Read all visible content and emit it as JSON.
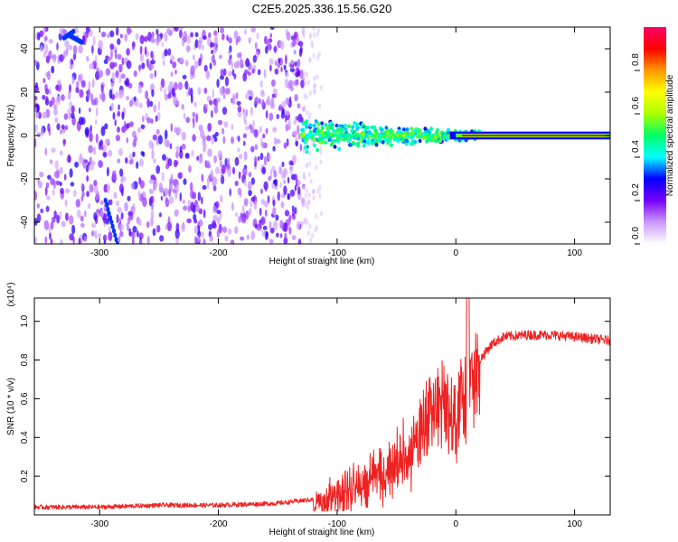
{
  "title": "C2E5.2025.336.15.56.G20",
  "chart_data": [
    {
      "type": "heatmap",
      "name": "spectrogram",
      "title": "C2E5.2025.336.15.56.G20",
      "xlabel": "Height of straight line (km)",
      "ylabel": "Frequency (Hz)",
      "xlim": [
        -355,
        130
      ],
      "ylim": [
        -50,
        50
      ],
      "xticks": [
        -300,
        -200,
        -100,
        0,
        100
      ],
      "yticks": [
        -40,
        -20,
        0,
        20,
        40
      ],
      "noise_region_x": [
        -355,
        -128
      ],
      "signal_centerline_hz": 0,
      "signal_spread_x": [
        -130,
        20
      ],
      "clean_tone_x": [
        20,
        130
      ],
      "colorbar": {
        "label": "Normalized spectral amplitude",
        "range": [
          0,
          1
        ],
        "ticks": [
          0.0,
          0.2,
          0.4,
          0.6,
          0.8
        ],
        "tick_labels": [
          "0.0",
          "0.2",
          "0.4",
          "0.6",
          "0.8"
        ],
        "colors": [
          "#ffffff",
          "#cc99ff",
          "#7700ff",
          "#0000ff",
          "#00ffff",
          "#00ff66",
          "#aaff00",
          "#ffff00",
          "#ff9900",
          "#ff0000",
          "#ff0066"
        ]
      }
    },
    {
      "type": "line",
      "name": "snr",
      "xlabel": "Height of straight line (km)",
      "ylabel": "SNR (10 * v/v)",
      "yscale_label": "(x10⁴)",
      "xlim": [
        -355,
        130
      ],
      "ylim": [
        0,
        1.12
      ],
      "xticks": [
        -300,
        -200,
        -100,
        0,
        100
      ],
      "yticks": [
        0.2,
        0.4,
        0.6,
        0.8,
        1.0
      ],
      "ytick_labels": [
        "0.2",
        "0.4",
        "0.6",
        "0.8",
        "1.0"
      ],
      "color": "#ee2222",
      "x": [
        -355,
        -300,
        -250,
        -200,
        -150,
        -120,
        -100,
        -80,
        -60,
        -40,
        -30,
        -20,
        -10,
        0,
        5,
        10,
        15,
        20,
        30,
        40,
        60,
        80,
        100,
        130
      ],
      "y": [
        0.04,
        0.04,
        0.05,
        0.05,
        0.06,
        0.08,
        0.14,
        0.2,
        0.28,
        0.38,
        0.5,
        0.6,
        0.7,
        0.58,
        0.6,
        0.75,
        0.78,
        0.8,
        0.88,
        0.92,
        0.93,
        0.93,
        0.92,
        0.9
      ]
    }
  ]
}
